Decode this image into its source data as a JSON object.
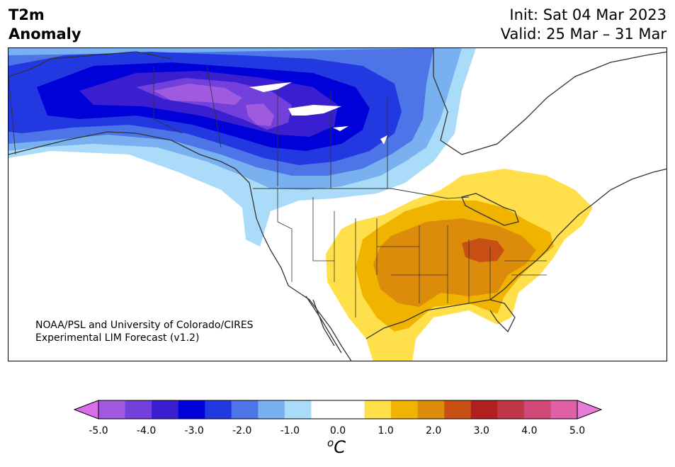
{
  "header": {
    "title_line1": "T2m",
    "title_line2": "Anomaly",
    "init": "Init: Sat 04 Mar 2023",
    "valid": "Valid: 25 Mar – 31 Mar"
  },
  "map": {
    "credit_line1": "NOAA/PSL and University of Colorado/CIRES",
    "credit_line2": "Experimental LIM Forecast (v1.2)",
    "cold_anomaly_region": "Alaska / western Canada",
    "warm_anomaly_region": "Central and eastern United States"
  },
  "colorbar": {
    "unit_base": "C",
    "unit_sup": "o",
    "ticks": [
      "-5.0",
      "-4.0",
      "-3.0",
      "-2.0",
      "-1.0",
      "0.0",
      "1.0",
      "2.0",
      "3.0",
      "4.0",
      "5.0"
    ],
    "under_color": "#d86fe8",
    "over_color": "#e87ad8",
    "colors": [
      "#a05ae0",
      "#7340dc",
      "#3a1fd0",
      "#0000d8",
      "#2238e0",
      "#4d75e8",
      "#78b0f0",
      "#aadcfa",
      "#ffffff",
      "#ffffff",
      "#ffe04a",
      "#f0b400",
      "#dc8c0a",
      "#c85014",
      "#b02020",
      "#c03848",
      "#d04878",
      "#e060a8"
    ]
  }
}
